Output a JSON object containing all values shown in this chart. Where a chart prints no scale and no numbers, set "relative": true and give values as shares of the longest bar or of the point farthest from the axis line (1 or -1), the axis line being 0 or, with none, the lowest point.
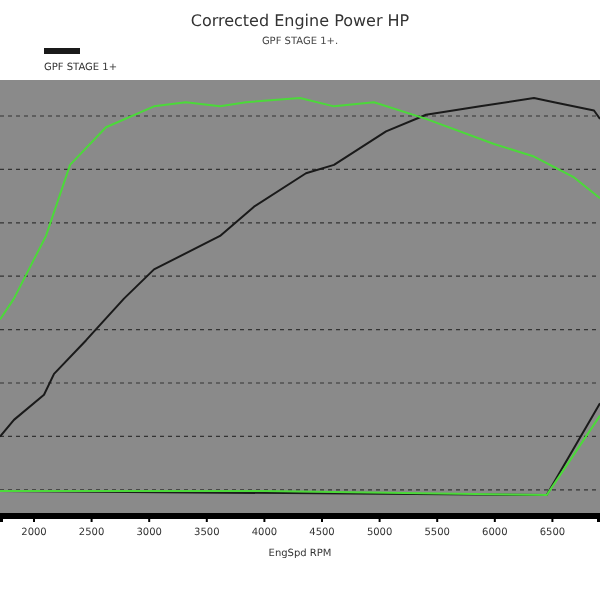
{
  "chart_data": {
    "type": "line",
    "title": "Corrected Engine Power HP",
    "subtitle": "GPF STAGE 1+.",
    "xlabel": "EngSpd RPM",
    "relative": true,
    "xlim": [
      1705,
      6913
    ],
    "xticks": [
      2000,
      2500,
      3000,
      3500,
      4000,
      4500,
      5000,
      5500,
      6000,
      6500
    ],
    "grid": "y",
    "legend": "top left",
    "line_style": "solid",
    "series": [
      {
        "name": "GPF STAGE 1+",
        "color": "#1a1a1a",
        "x": [
          1705,
          1826,
          2087,
          2174,
          2451,
          2781,
          3042,
          3615,
          3910,
          4361,
          4604,
          5056,
          5403,
          5872,
          6340,
          6514,
          6861,
          6913
        ],
        "values": [
          0.19,
          0.23,
          0.29,
          0.34,
          0.42,
          0.52,
          0.59,
          0.67,
          0.74,
          0.82,
          0.84,
          0.92,
          0.96,
          0.98,
          1.0,
          0.99,
          0.97,
          0.95
        ]
      },
      {
        "color": "#4cd93a",
        "x": [
          1705,
          1826,
          2104,
          2313,
          2625,
          3042,
          3319,
          3615,
          3840,
          4309,
          4604,
          4951,
          5403,
          5993,
          6340,
          6688,
          6913
        ],
        "values": [
          0.47,
          0.52,
          0.67,
          0.84,
          0.93,
          0.98,
          0.99,
          0.98,
          0.99,
          1.0,
          0.98,
          0.99,
          0.95,
          0.89,
          0.86,
          0.81,
          0.76
        ]
      },
      {
        "color": "#1a1a1a",
        "x": [
          1705,
          6450,
          6913
        ],
        "values": [
          0.06,
          0.05,
          0.27
        ]
      },
      {
        "color": "#4cd93a",
        "x": [
          1705,
          4000,
          6450,
          6913
        ],
        "values": [
          0.06,
          0.06,
          0.05,
          0.24
        ]
      }
    ]
  }
}
